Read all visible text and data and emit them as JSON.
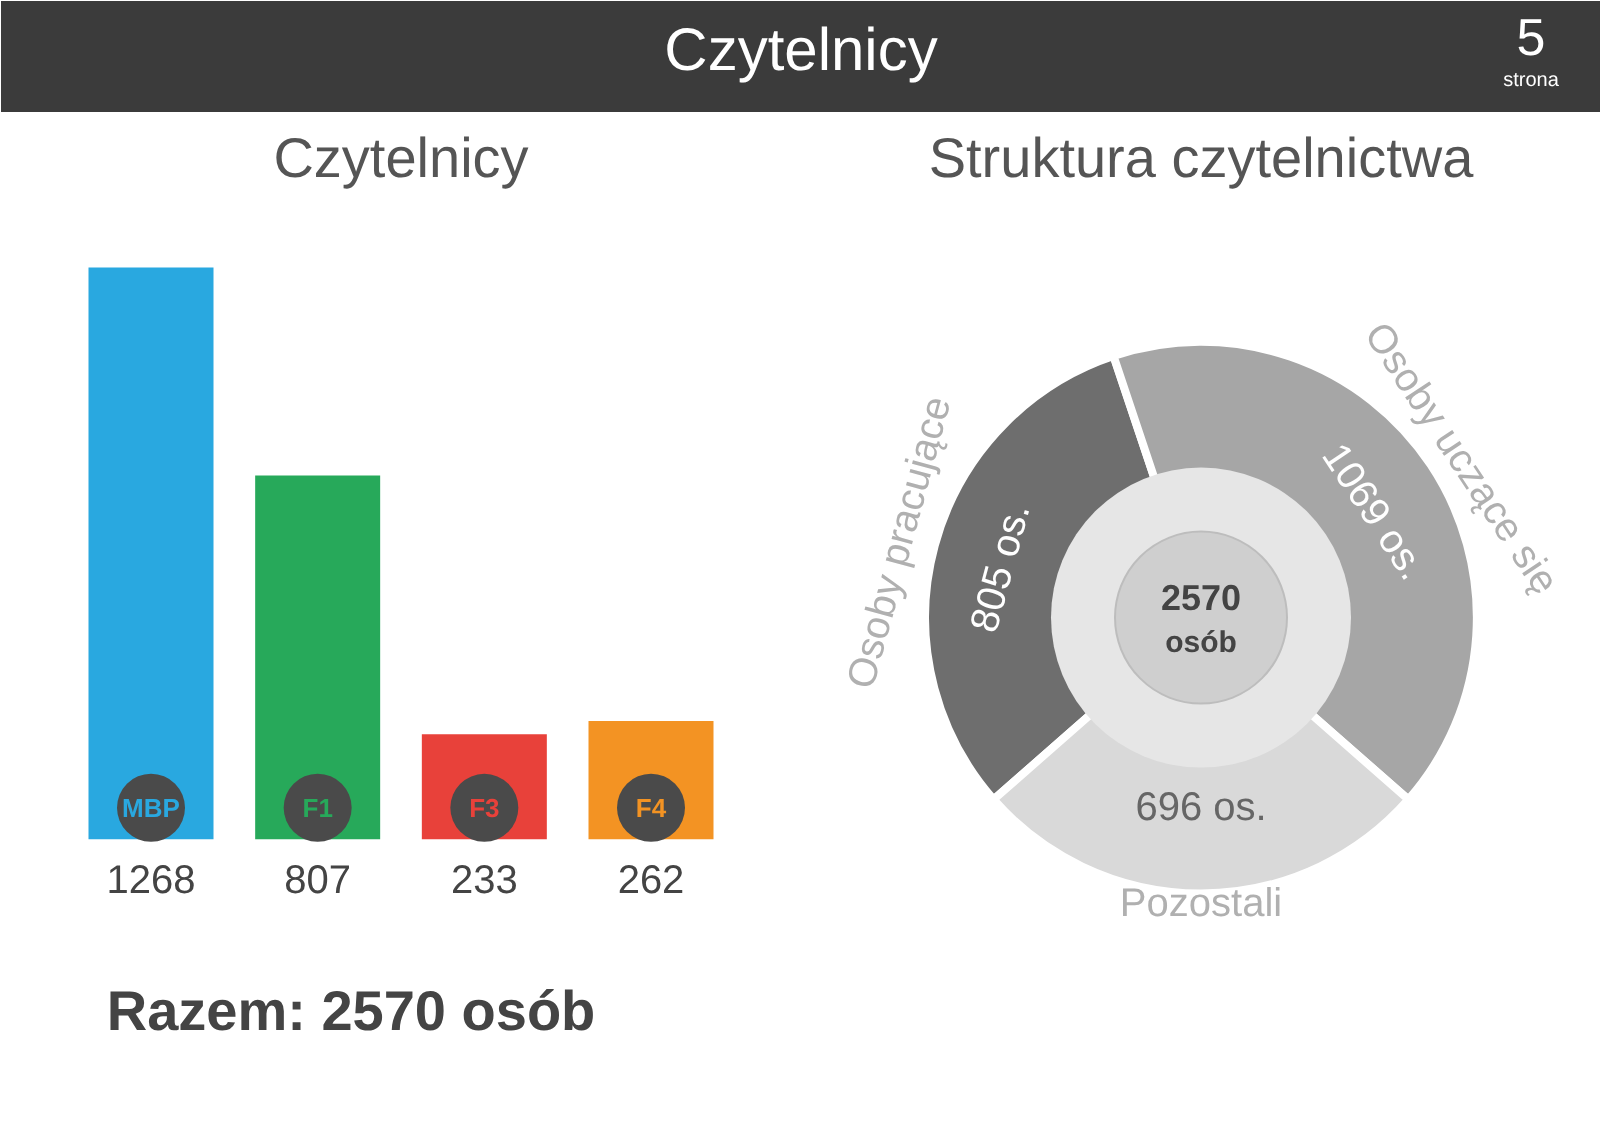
{
  "chart_data": [
    {
      "type": "bar",
      "title": "Czytelnicy",
      "categories": [
        "MBP",
        "F1",
        "F3",
        "F4"
      ],
      "values": [
        1268,
        807,
        233,
        262
      ],
      "colors": [
        "#29a8e0",
        "#27a95a",
        "#e8413a",
        "#f39323"
      ],
      "data_labels": true,
      "annotations": [
        "Czytelnicy",
        "5",
        "strona",
        "Razem: 2570 osób"
      ]
    },
    {
      "type": "donut",
      "title": "Struktura czytelnictwa",
      "categories": [
        "Osoby pracujące",
        "Osoby uczące się",
        "Pozostali"
      ],
      "values": [
        805,
        1069,
        696
      ],
      "colors": [
        "#6e6e6e",
        "#a6a6a6",
        "#d9d9d9"
      ],
      "value_labels": [
        "805 os.",
        "1069 os.",
        "696 os."
      ],
      "annotations": [
        "2570",
        "osób"
      ]
    }
  ]
}
